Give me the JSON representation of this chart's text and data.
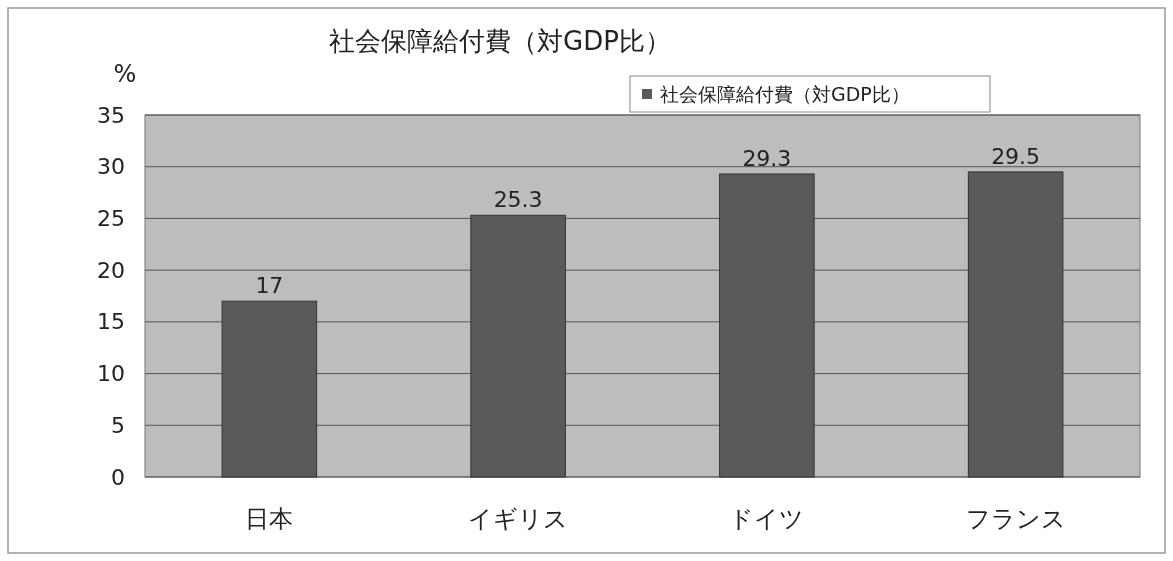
{
  "chart_data": {
    "type": "bar",
    "title": "社会保障給付費（対GDP比）",
    "ylabel": "%",
    "categories": [
      "日本",
      "イギリス",
      "ドイツ",
      "フランス"
    ],
    "series": [
      {
        "name": "社会保障給付費（対GDP比）",
        "color": "#5a5a5a",
        "values": [
          17,
          25.3,
          29.3,
          29.5
        ]
      }
    ],
    "ylim": [
      0,
      35
    ],
    "yticks": [
      0,
      5,
      10,
      15,
      20,
      25,
      30,
      35
    ],
    "grid": "y",
    "legend": "top right",
    "data_labels": true
  }
}
